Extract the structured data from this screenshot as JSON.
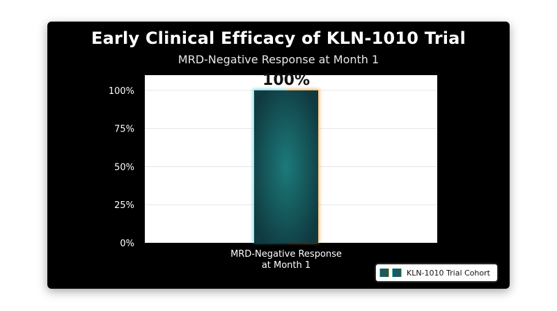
{
  "title": "Early Clinical Efficacy of KLN-1010 Trial",
  "subtitle": "MRD-Negative Response at Month 1",
  "legend": {
    "label": "KLN-1010 Trial Cohort"
  },
  "colors": {
    "bar_fill": "#1c6a6c",
    "bar_glow_left": "#4fd1d9",
    "bar_glow_right": "#f0a030",
    "plot_background": "#ffffff",
    "gridline": "#e6e6e6",
    "slide_background": "#000000"
  },
  "chart_data": {
    "type": "bar",
    "title": "Early Clinical Efficacy of KLN-1010 Trial",
    "subtitle": "MRD-Negative Response at Month 1",
    "categories": [
      "MRD-Negative Response\nat Month 1"
    ],
    "series": [
      {
        "name": "KLN-1010 Trial Cohort",
        "values": [
          100
        ]
      }
    ],
    "data_labels": [
      "100%"
    ],
    "yticks": [
      "0%",
      "25%",
      "50%",
      "75%",
      "100%"
    ],
    "ytick_values": [
      0,
      25,
      50,
      75,
      100
    ],
    "ylim": [
      0,
      110
    ],
    "xlabel": "",
    "ylabel": "",
    "grid": true,
    "legend_position": "bottom-right"
  }
}
